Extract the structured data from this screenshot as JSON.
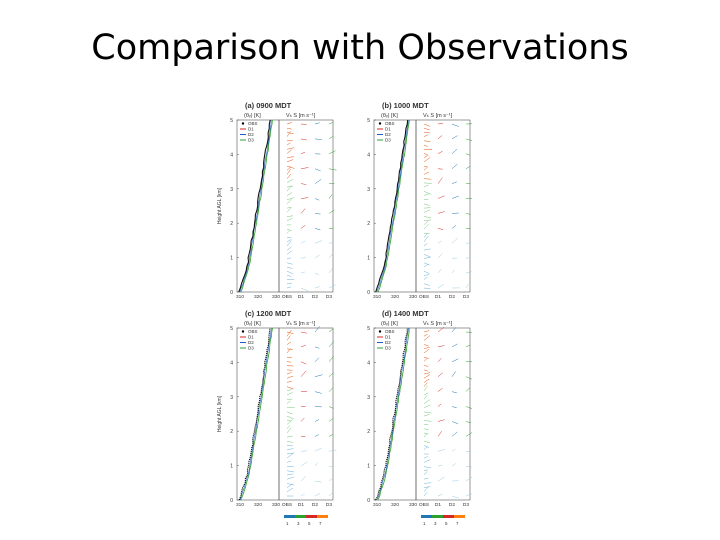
{
  "slide": {
    "title": "Comparison with Observations"
  },
  "figure": {
    "theta_header": "(θᵥ) [K]",
    "wind_header": "Vₕ S [m s⁻¹]",
    "legend_items": [
      "OBS",
      "D1",
      "D2",
      "D3"
    ],
    "legend_colors": [
      "#000000",
      "#d62728",
      "#1f5fbf",
      "#2ca02c"
    ],
    "panels": [
      {
        "label": "(a)",
        "time": "0900 MDT",
        "theta_ticks": [
          "310",
          "320",
          "330"
        ],
        "wind_columns": [
          "OBS",
          "D1",
          "D2",
          "D3"
        ],
        "y_ticks": [
          "0",
          "1",
          "2",
          "3",
          "4",
          "5"
        ],
        "ylabel": "Height AGL [km]"
      },
      {
        "label": "(b)",
        "time": "1000 MDT",
        "theta_ticks": [
          "310",
          "320",
          "330"
        ],
        "wind_columns": [
          "OBS",
          "D1",
          "D2",
          "D3"
        ],
        "y_ticks": [
          "0",
          "1",
          "2",
          "3",
          "4",
          "5"
        ],
        "ylabel": ""
      },
      {
        "label": "(c)",
        "time": "1200 MDT",
        "theta_ticks": [
          "310",
          "320",
          "330"
        ],
        "wind_columns": [
          "OBS",
          "D1",
          "D2",
          "D3"
        ],
        "y_ticks": [
          "0",
          "1",
          "2",
          "3",
          "4",
          "5"
        ],
        "ylabel": "Height AGL [km]"
      },
      {
        "label": "(d)",
        "time": "1400 MDT",
        "theta_ticks": [
          "310",
          "320",
          "330"
        ],
        "wind_columns": [
          "OBS",
          "D1",
          "D2",
          "D3"
        ],
        "y_ticks": [
          "0",
          "1",
          "2",
          "3",
          "4",
          "5"
        ],
        "ylabel": ""
      }
    ],
    "colorbar": {
      "ticks": [
        "1",
        "3",
        "5",
        "7"
      ],
      "colors": [
        "#1f77b4",
        "#2ca02c",
        "#d62728",
        "#ff7f0e"
      ]
    }
  }
}
